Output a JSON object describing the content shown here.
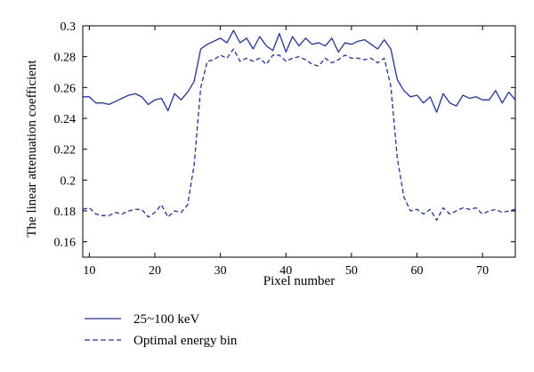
{
  "chart_data": {
    "type": "line",
    "title": "",
    "xlabel": "Pixel number",
    "ylabel": "The linear attenuation coefficient",
    "xlim": [
      9,
      75
    ],
    "ylim": [
      0.15,
      0.3
    ],
    "xticks": [
      10,
      20,
      30,
      40,
      50,
      60,
      70
    ],
    "yticks": [
      0.16,
      0.18,
      0.2,
      0.22,
      0.24,
      0.26,
      0.28,
      0.3
    ],
    "ytick_labels": [
      "0.16",
      "0.18",
      "0.2",
      "0.22",
      "0.24",
      "0.26",
      "0.28",
      "0.3"
    ],
    "grid": false,
    "legend_position": "bottom-left, outside plot",
    "colors": {
      "series": "#1f2fbf",
      "axis": "#000000"
    },
    "x": [
      9,
      10,
      11,
      12,
      13,
      14,
      15,
      16,
      17,
      18,
      19,
      20,
      21,
      22,
      23,
      24,
      25,
      26,
      27,
      28,
      29,
      30,
      31,
      32,
      33,
      34,
      35,
      36,
      37,
      38,
      39,
      40,
      41,
      42,
      43,
      44,
      45,
      46,
      47,
      48,
      49,
      50,
      51,
      52,
      53,
      54,
      55,
      56,
      57,
      58,
      59,
      60,
      61,
      62,
      63,
      64,
      65,
      66,
      67,
      68,
      69,
      70,
      71,
      72,
      73,
      74,
      75
    ],
    "series": [
      {
        "name": "25~100 keV",
        "style": "solid",
        "values": [
          0.254,
          0.254,
          0.25,
          0.25,
          0.249,
          0.251,
          0.253,
          0.255,
          0.256,
          0.254,
          0.249,
          0.252,
          0.253,
          0.245,
          0.256,
          0.252,
          0.257,
          0.264,
          0.285,
          0.288,
          0.29,
          0.292,
          0.289,
          0.297,
          0.289,
          0.292,
          0.285,
          0.293,
          0.287,
          0.284,
          0.295,
          0.283,
          0.293,
          0.287,
          0.292,
          0.288,
          0.289,
          0.287,
          0.292,
          0.283,
          0.289,
          0.288,
          0.29,
          0.291,
          0.288,
          0.285,
          0.291,
          0.285,
          0.265,
          0.258,
          0.254,
          0.255,
          0.25,
          0.254,
          0.244,
          0.256,
          0.25,
          0.248,
          0.255,
          0.253,
          0.254,
          0.252,
          0.252,
          0.258,
          0.25,
          0.257,
          0.252
        ]
      },
      {
        "name": "Optimal energy bin",
        "style": "dashed",
        "values": [
          0.181,
          0.182,
          0.178,
          0.177,
          0.177,
          0.179,
          0.178,
          0.18,
          0.181,
          0.181,
          0.176,
          0.179,
          0.184,
          0.176,
          0.18,
          0.179,
          0.184,
          0.21,
          0.26,
          0.277,
          0.278,
          0.281,
          0.279,
          0.285,
          0.277,
          0.279,
          0.277,
          0.279,
          0.275,
          0.281,
          0.281,
          0.277,
          0.279,
          0.28,
          0.278,
          0.275,
          0.274,
          0.279,
          0.276,
          0.278,
          0.281,
          0.279,
          0.279,
          0.278,
          0.279,
          0.276,
          0.279,
          0.261,
          0.214,
          0.189,
          0.18,
          0.181,
          0.178,
          0.181,
          0.174,
          0.182,
          0.178,
          0.18,
          0.182,
          0.181,
          0.182,
          0.178,
          0.18,
          0.181,
          0.179,
          0.18,
          0.181
        ]
      }
    ]
  }
}
